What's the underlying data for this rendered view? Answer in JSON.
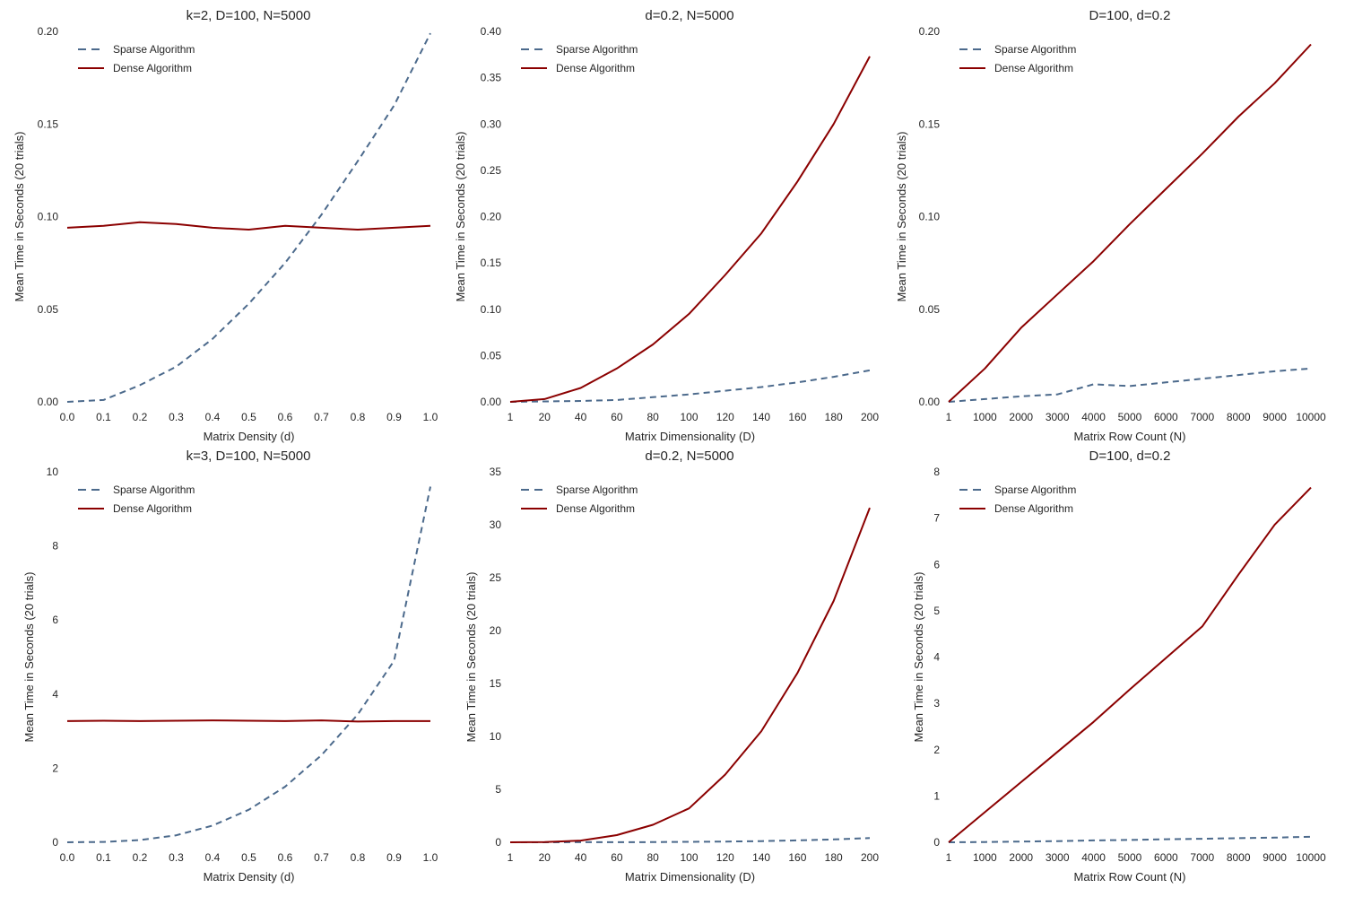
{
  "chart_data": [
    {
      "type": "line",
      "title": "k=2, D=100, N=5000",
      "xlabel": "Matrix Density (d)",
      "ylabel": "Mean Time in Seconds (20 trials)",
      "x": [
        0.0,
        0.1,
        0.2,
        0.3,
        0.4,
        0.5,
        0.6,
        0.7,
        0.8,
        0.9,
        1.0
      ],
      "xticks": [
        0.0,
        0.1,
        0.2,
        0.3,
        0.4,
        0.5,
        0.6,
        0.7,
        0.8,
        0.9,
        1.0
      ],
      "xtick_labels": [
        "0.0",
        "0.1",
        "0.2",
        "0.3",
        "0.4",
        "0.5",
        "0.6",
        "0.7",
        "0.8",
        "0.9",
        "1.0"
      ],
      "xlim": [
        0.0,
        1.0
      ],
      "yticks": [
        0.0,
        0.05,
        0.1,
        0.15,
        0.2
      ],
      "ytick_labels": [
        "0.00",
        "0.05",
        "0.10",
        "0.15",
        "0.20"
      ],
      "ylim": [
        0.0,
        0.2
      ],
      "grid": false,
      "legend_position": "top-left",
      "series": [
        {
          "name": "Sparse Algorithm",
          "style": "dashed",
          "color": "#4c6a8c",
          "values": [
            0.0,
            0.001,
            0.009,
            0.019,
            0.034,
            0.053,
            0.075,
            0.101,
            0.13,
            0.16,
            0.199
          ]
        },
        {
          "name": "Dense Algorithm",
          "style": "solid",
          "color": "#8b0000",
          "values": [
            0.094,
            0.095,
            0.097,
            0.096,
            0.094,
            0.093,
            0.095,
            0.094,
            0.093,
            0.094,
            0.095
          ]
        }
      ]
    },
    {
      "type": "line",
      "title": "d=0.2, N=5000",
      "xlabel": "Matrix Dimensionality (D)",
      "ylabel": "Mean Time in Seconds (20 trials)",
      "x": [
        1,
        20,
        40,
        60,
        80,
        100,
        120,
        140,
        160,
        180,
        200
      ],
      "xticks": [
        1,
        20,
        40,
        60,
        80,
        100,
        120,
        140,
        160,
        180,
        200
      ],
      "xtick_labels": [
        "1",
        "20",
        "40",
        "60",
        "80",
        "100",
        "120",
        "140",
        "160",
        "180",
        "200"
      ],
      "xlim": [
        1,
        200
      ],
      "yticks": [
        0.0,
        0.05,
        0.1,
        0.15,
        0.2,
        0.25,
        0.3,
        0.35,
        0.4
      ],
      "ytick_labels": [
        "0.00",
        "0.05",
        "0.10",
        "0.15",
        "0.20",
        "0.25",
        "0.30",
        "0.35",
        "0.40"
      ],
      "ylim": [
        0.0,
        0.4
      ],
      "grid": false,
      "legend_position": "top-left",
      "series": [
        {
          "name": "Sparse Algorithm",
          "style": "dashed",
          "color": "#4c6a8c",
          "values": [
            0.0,
            0.0005,
            0.001,
            0.002,
            0.005,
            0.008,
            0.012,
            0.016,
            0.021,
            0.027,
            0.034
          ]
        },
        {
          "name": "Dense Algorithm",
          "style": "solid",
          "color": "#8b0000",
          "values": [
            0.0,
            0.003,
            0.015,
            0.036,
            0.062,
            0.095,
            0.137,
            0.182,
            0.238,
            0.3,
            0.373
          ]
        }
      ]
    },
    {
      "type": "line",
      "title": "D=100, d=0.2",
      "xlabel": "Matrix Row Count (N)",
      "ylabel": "Mean Time in Seconds (20 trials)",
      "x": [
        1,
        1000,
        2000,
        3000,
        4000,
        5000,
        6000,
        7000,
        8000,
        9000,
        10000
      ],
      "xticks": [
        1,
        1000,
        2000,
        3000,
        4000,
        5000,
        6000,
        7000,
        8000,
        9000,
        10000
      ],
      "xtick_labels": [
        "1",
        "1000",
        "2000",
        "3000",
        "4000",
        "5000",
        "6000",
        "7000",
        "8000",
        "9000",
        "10000"
      ],
      "xlim": [
        1,
        10000
      ],
      "yticks": [
        0.0,
        0.05,
        0.1,
        0.15,
        0.2
      ],
      "ytick_labels": [
        "0.00",
        "0.05",
        "0.10",
        "0.15",
        "0.20"
      ],
      "ylim": [
        0.0,
        0.2
      ],
      "grid": false,
      "legend_position": "top-left",
      "series": [
        {
          "name": "Sparse Algorithm",
          "style": "dashed",
          "color": "#4c6a8c",
          "values": [
            0.0,
            0.0015,
            0.003,
            0.004,
            0.0095,
            0.0085,
            0.0105,
            0.0125,
            0.0145,
            0.0165,
            0.018
          ]
        },
        {
          "name": "Dense Algorithm",
          "style": "solid",
          "color": "#8b0000",
          "values": [
            0.0,
            0.018,
            0.04,
            0.058,
            0.076,
            0.096,
            0.115,
            0.134,
            0.154,
            0.172,
            0.193
          ]
        }
      ]
    },
    {
      "type": "line",
      "title": "k=3, D=100, N=5000",
      "xlabel": "Matrix Density (d)",
      "ylabel": "Mean Time in Seconds (20 trials)",
      "x": [
        0.0,
        0.1,
        0.2,
        0.3,
        0.4,
        0.5,
        0.6,
        0.7,
        0.8,
        0.9,
        1.0
      ],
      "xticks": [
        0.0,
        0.1,
        0.2,
        0.3,
        0.4,
        0.5,
        0.6,
        0.7,
        0.8,
        0.9,
        1.0
      ],
      "xtick_labels": [
        "0.0",
        "0.1",
        "0.2",
        "0.3",
        "0.4",
        "0.5",
        "0.6",
        "0.7",
        "0.8",
        "0.9",
        "1.0"
      ],
      "xlim": [
        0.0,
        1.0
      ],
      "yticks": [
        0,
        2,
        4,
        6,
        8,
        10
      ],
      "ytick_labels": [
        "0",
        "2",
        "4",
        "6",
        "8",
        "10"
      ],
      "ylim": [
        0,
        10
      ],
      "grid": false,
      "legend_position": "top-left",
      "series": [
        {
          "name": "Sparse Algorithm",
          "style": "dashed",
          "color": "#4c6a8c",
          "values": [
            0.0,
            0.01,
            0.06,
            0.19,
            0.45,
            0.88,
            1.5,
            2.35,
            3.45,
            4.9,
            9.6
          ]
        },
        {
          "name": "Dense Algorithm",
          "style": "solid",
          "color": "#8b0000",
          "values": [
            3.27,
            3.28,
            3.27,
            3.28,
            3.29,
            3.28,
            3.27,
            3.29,
            3.26,
            3.27,
            3.27
          ]
        }
      ]
    },
    {
      "type": "line",
      "title": "d=0.2, N=5000",
      "xlabel": "Matrix Dimensionality (D)",
      "ylabel": "Mean Time in Seconds (20 trials)",
      "x": [
        1,
        20,
        40,
        60,
        80,
        100,
        120,
        140,
        160,
        180,
        200
      ],
      "xticks": [
        1,
        20,
        40,
        60,
        80,
        100,
        120,
        140,
        160,
        180,
        200
      ],
      "xtick_labels": [
        "1",
        "20",
        "40",
        "60",
        "80",
        "100",
        "120",
        "140",
        "160",
        "180",
        "200"
      ],
      "xlim": [
        1,
        200
      ],
      "yticks": [
        0,
        5,
        10,
        15,
        20,
        25,
        30,
        35
      ],
      "ytick_labels": [
        "0",
        "5",
        "10",
        "15",
        "20",
        "25",
        "30",
        "35"
      ],
      "ylim": [
        0,
        35
      ],
      "grid": false,
      "legend_position": "top-left",
      "series": [
        {
          "name": "Sparse Algorithm",
          "style": "dashed",
          "color": "#4c6a8c",
          "values": [
            0.0,
            0.0,
            0.005,
            0.01,
            0.02,
            0.04,
            0.07,
            0.11,
            0.18,
            0.27,
            0.4
          ]
        },
        {
          "name": "Dense Algorithm",
          "style": "solid",
          "color": "#8b0000",
          "values": [
            0.0,
            0.02,
            0.16,
            0.68,
            1.65,
            3.2,
            6.4,
            10.5,
            16.0,
            22.8,
            31.6
          ]
        }
      ]
    },
    {
      "type": "line",
      "title": "D=100, d=0.2",
      "xlabel": "Matrix Row Count (N)",
      "ylabel": "Mean Time in Seconds (20 trials)",
      "x": [
        1,
        1000,
        2000,
        3000,
        4000,
        5000,
        6000,
        7000,
        8000,
        9000,
        10000
      ],
      "xticks": [
        1,
        1000,
        2000,
        3000,
        4000,
        5000,
        6000,
        7000,
        8000,
        9000,
        10000
      ],
      "xtick_labels": [
        "1",
        "1000",
        "2000",
        "3000",
        "4000",
        "5000",
        "6000",
        "7000",
        "8000",
        "9000",
        "10000"
      ],
      "xlim": [
        1,
        10000
      ],
      "yticks": [
        0,
        1,
        2,
        3,
        4,
        5,
        6,
        7,
        8
      ],
      "ytick_labels": [
        "0",
        "1",
        "2",
        "3",
        "4",
        "5",
        "6",
        "7",
        "8"
      ],
      "ylim": [
        0,
        8
      ],
      "grid": false,
      "legend_position": "top-left",
      "series": [
        {
          "name": "Sparse Algorithm",
          "style": "dashed",
          "color": "#4c6a8c",
          "values": [
            0.0,
            0.005,
            0.015,
            0.025,
            0.04,
            0.05,
            0.065,
            0.075,
            0.09,
            0.1,
            0.12
          ]
        },
        {
          "name": "Dense Algorithm",
          "style": "solid",
          "color": "#8b0000",
          "values": [
            0.0,
            0.65,
            1.3,
            1.95,
            2.6,
            3.3,
            3.98,
            4.66,
            5.78,
            6.86,
            7.66
          ]
        }
      ]
    }
  ]
}
